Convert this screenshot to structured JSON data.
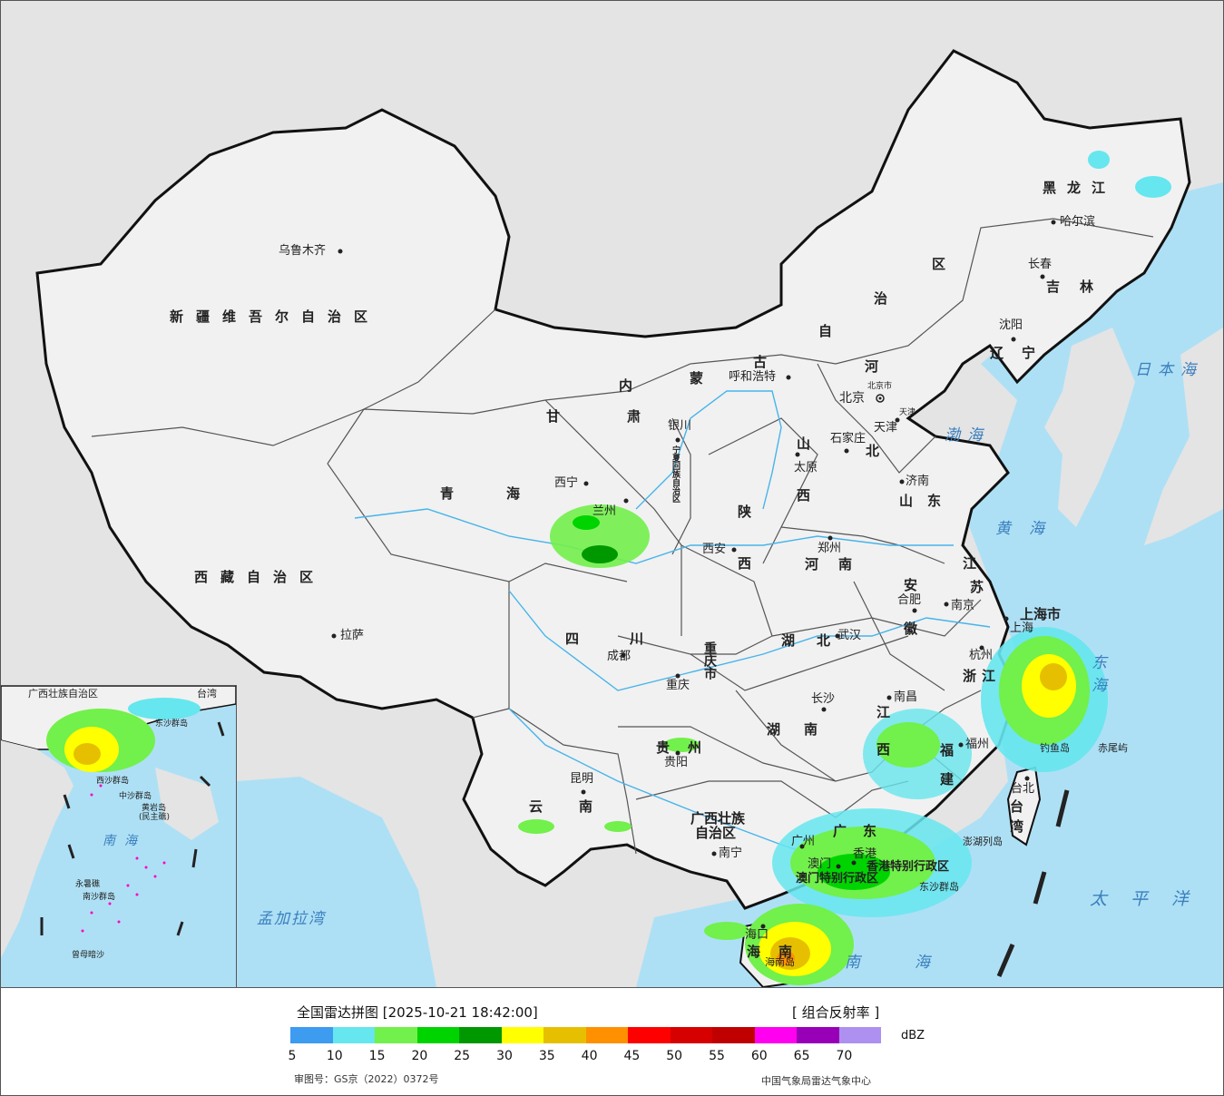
{
  "colors": {
    "land": "#f1f1f1",
    "neighbor_land": "#e4e4e4",
    "sea": "#aee0f5",
    "border": "#111111",
    "river": "#46b4ea"
  },
  "cities": {
    "urumqi": "乌鲁木齐",
    "lhasa": "拉萨",
    "xining": "西宁",
    "lanzhou": "兰州",
    "yinchuan": "银川",
    "hohhot": "呼和浩特",
    "beijing": "北京",
    "beijing_small": "北京市",
    "tianjin": "天津",
    "tianjin_small": "天津",
    "shijiazhuang": "石家庄",
    "taiyuan": "太原",
    "jinan": "济南",
    "zhengzhou": "郑州",
    "xian": "西安",
    "chengdu": "成都",
    "chongqing": "重庆",
    "wuhan": "武汉",
    "hefei": "合肥",
    "nanjing": "南京",
    "shanghai": "上海",
    "hangzhou": "杭州",
    "nanchang": "南昌",
    "fuzhou": "福州",
    "taipei": "台北",
    "changsha": "长沙",
    "guiyang": "贵阳",
    "kunming": "昆明",
    "nanning": "南宁",
    "guangzhou": "广州",
    "hongkong": "香港",
    "macao": "澳门",
    "haikou": "海口",
    "harbin": "哈尔滨",
    "changchun": "长春",
    "shenyang": "沈阳",
    "diaoyu": "钓鱼岛",
    "chiwei": "赤尾屿",
    "dongsha": "东沙群岛",
    "penghu": "澎湖列岛",
    "hainan_island": "海南岛"
  },
  "provinces": {
    "xinjiang": "新疆维吾尔自治区",
    "xizang": "西藏自治区",
    "qinghai": "青海",
    "gansu": "甘肃",
    "neimenggu_1": "内",
    "neimenggu_2": "蒙",
    "neimenggu_3": "古",
    "neimenggu_4": "自",
    "neimenggu_5": "治",
    "neimenggu_6": "区",
    "heilongjiang": "黑龙江",
    "jilin": "吉林",
    "liaoning": "辽宁",
    "hebei_1": "河",
    "hebei_2": "北",
    "shanxi_1": "山",
    "shanxi_2": "西",
    "shandong": "山东",
    "henan": "河南",
    "shaanxi_1": "陕",
    "shaanxi_2": "西",
    "ningxia": "宁夏回族自治区",
    "sichuan": "四川",
    "chongqing": "重庆市",
    "hubei": "湖北",
    "anhui_1": "安",
    "anhui_2": "徽",
    "jiangsu_1": "江",
    "jiangsu_2": "苏",
    "shanghai": "上海市",
    "zhejiang": "浙江",
    "jiangxi_1": "江",
    "jiangxi_2": "西",
    "fujian_1": "福",
    "fujian_2": "建",
    "hunan": "湖南",
    "guizhou": "贵州",
    "yunnan": "云南",
    "guangxi_1": "广西壮族",
    "guangxi_2": "自治区",
    "guangdong": "广东",
    "hainan": "海南",
    "taiwan_1": "台",
    "taiwan_2": "湾",
    "gangao": "香港特别行政区",
    "aomen": "澳门特别行政区"
  },
  "seas": {
    "sea_of_japan": "日本海",
    "bohai": "渤海",
    "yellow_sea": "黄海",
    "east_china_sea": "东海",
    "pacific": "太平洋",
    "south_china_sea": "南海",
    "bay_of_bengal": "孟加拉湾"
  },
  "inset": {
    "guangxi": "广西壮族自治区",
    "south_sea": "南海",
    "zhongsha": "中沙群岛",
    "huangyan": "黄岩岛",
    "huangyan_note": "(民主礁)",
    "yongshu": "永暑礁",
    "nansha": "南沙群岛",
    "zengmu": "曾母暗沙",
    "dongsha": "东沙群岛",
    "xisha": "西沙群岛",
    "taiwan": "台湾"
  },
  "legend": {
    "title": "全国雷达拼图 [2025-10-21 18:42:00]",
    "product": "[ 组合反射率 ]",
    "unit": "dBZ",
    "approval": "审图号：GS京（2022）0372号",
    "source": "中国气象局雷达气象中心",
    "ticks": [
      "5",
      "10",
      "15",
      "20",
      "25",
      "30",
      "35",
      "40",
      "45",
      "50",
      "55",
      "60",
      "65",
      "70"
    ],
    "scale_colors": [
      "#3d9bf0",
      "#66e6ee",
      "#72f04b",
      "#00d400",
      "#009800",
      "#ffff00",
      "#e6c000",
      "#ff9000",
      "#ff0000",
      "#d60000",
      "#c00000",
      "#ff00f0",
      "#9800b8",
      "#ad90f0"
    ]
  }
}
